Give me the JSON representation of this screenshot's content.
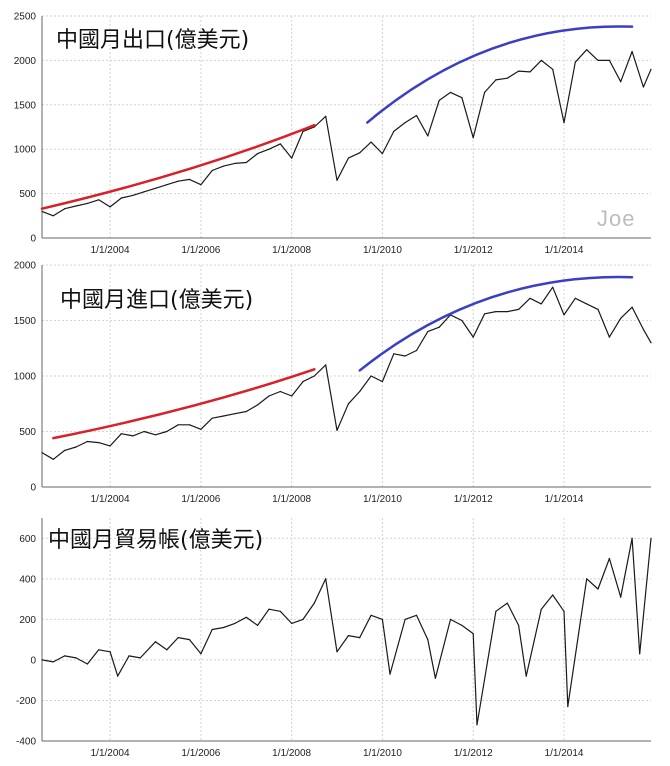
{
  "watermark": "Joe",
  "colors": {
    "line": "#1a1a1a",
    "grid": "#d4d4d4",
    "axis": "#666666",
    "red_trend": "#d9202a",
    "blue_trend": "#3b3fc4"
  },
  "chart_data": [
    {
      "type": "line",
      "title": "中國月出口(億美元)",
      "xlabel": "",
      "ylabel": "",
      "xlim": [
        "2002-07-01",
        "2015-12-01"
      ],
      "ylim": [
        0,
        2500
      ],
      "grid": true,
      "x_ticks": [
        "1/1/2004",
        "1/1/2006",
        "1/1/2008",
        "1/1/2010",
        "1/1/2012",
        "1/1/2014"
      ],
      "y_ticks": [
        "0",
        "500",
        "1000",
        "1500",
        "2000",
        "2500"
      ],
      "x": [
        "2002-07",
        "2002-10",
        "2003-01",
        "2003-04",
        "2003-07",
        "2003-10",
        "2004-01",
        "2004-04",
        "2004-07",
        "2004-10",
        "2005-01",
        "2005-04",
        "2005-07",
        "2005-10",
        "2006-01",
        "2006-04",
        "2006-07",
        "2006-10",
        "2007-01",
        "2007-04",
        "2007-07",
        "2007-10",
        "2008-01",
        "2008-04",
        "2008-07",
        "2008-10",
        "2009-01",
        "2009-04",
        "2009-07",
        "2009-10",
        "2010-01",
        "2010-04",
        "2010-07",
        "2010-10",
        "2011-01",
        "2011-04",
        "2011-07",
        "2011-10",
        "2012-01",
        "2012-04",
        "2012-07",
        "2012-10",
        "2013-01",
        "2013-04",
        "2013-07",
        "2013-10",
        "2014-01",
        "2014-04",
        "2014-07",
        "2014-10",
        "2015-01",
        "2015-04",
        "2015-07",
        "2015-10",
        "2015-12"
      ],
      "series": [
        {
          "values": [
            300,
            250,
            330,
            360,
            390,
            430,
            350,
            450,
            480,
            520,
            560,
            600,
            640,
            660,
            600,
            760,
            810,
            840,
            850,
            950,
            1000,
            1060,
            900,
            1200,
            1250,
            1370,
            650,
            900,
            960,
            1080,
            950,
            1200,
            1300,
            1380,
            1150,
            1550,
            1640,
            1580,
            1130,
            1640,
            1780,
            1800,
            1880,
            1870,
            2000,
            1900,
            1300,
            1980,
            2120,
            2000,
            2000,
            1760,
            2100,
            1700,
            1900
          ]
        }
      ],
      "trend_lines": [
        {
          "color": "red",
          "from": [
            "2002-07",
            330
          ],
          "to": [
            "2008-07",
            1270
          ]
        },
        {
          "color": "blue",
          "from": [
            "2009-09",
            1300
          ],
          "to": [
            "2015-07",
            2380
          ]
        }
      ]
    },
    {
      "type": "line",
      "title": "中國月進口(億美元)",
      "xlabel": "",
      "ylabel": "",
      "xlim": [
        "2002-07-01",
        "2015-12-01"
      ],
      "ylim": [
        0,
        2000
      ],
      "grid": true,
      "x_ticks": [
        "1/1/2004",
        "1/1/2006",
        "1/1/2008",
        "1/1/2010",
        "1/1/2012",
        "1/1/2014"
      ],
      "y_ticks": [
        "0",
        "500",
        "1000",
        "1500",
        "2000"
      ],
      "x": [
        "2002-07",
        "2002-10",
        "2003-01",
        "2003-04",
        "2003-07",
        "2003-10",
        "2004-01",
        "2004-04",
        "2004-07",
        "2004-10",
        "2005-01",
        "2005-04",
        "2005-07",
        "2005-10",
        "2006-01",
        "2006-04",
        "2006-07",
        "2006-10",
        "2007-01",
        "2007-04",
        "2007-07",
        "2007-10",
        "2008-01",
        "2008-04",
        "2008-07",
        "2008-10",
        "2009-01",
        "2009-04",
        "2009-07",
        "2009-10",
        "2010-01",
        "2010-04",
        "2010-07",
        "2010-10",
        "2011-01",
        "2011-04",
        "2011-07",
        "2011-10",
        "2012-01",
        "2012-04",
        "2012-07",
        "2012-10",
        "2013-01",
        "2013-04",
        "2013-07",
        "2013-10",
        "2014-01",
        "2014-04",
        "2014-07",
        "2014-10",
        "2015-01",
        "2015-04",
        "2015-07",
        "2015-10",
        "2015-12"
      ],
      "series": [
        {
          "values": [
            310,
            250,
            330,
            360,
            410,
            400,
            370,
            480,
            460,
            500,
            470,
            500,
            560,
            560,
            520,
            620,
            640,
            660,
            680,
            740,
            820,
            860,
            820,
            950,
            1000,
            1100,
            510,
            750,
            860,
            1000,
            950,
            1200,
            1180,
            1230,
            1400,
            1440,
            1550,
            1500,
            1350,
            1560,
            1580,
            1580,
            1600,
            1700,
            1650,
            1800,
            1550,
            1700,
            1650,
            1600,
            1350,
            1520,
            1620,
            1420,
            1300
          ]
        }
      ],
      "trend_lines": [
        {
          "color": "red",
          "from": [
            "2002-10",
            440
          ],
          "to": [
            "2008-07",
            1060
          ]
        },
        {
          "color": "blue",
          "from": [
            "2009-07",
            1050
          ],
          "to": [
            "2015-07",
            1890
          ]
        }
      ]
    },
    {
      "type": "line",
      "title": "中國月貿易帳(億美元)",
      "xlabel": "",
      "ylabel": "",
      "xlim": [
        "2002-07-01",
        "2015-12-01"
      ],
      "ylim": [
        -400,
        700
      ],
      "grid": true,
      "x_ticks": [
        "1/1/2004",
        "1/1/2006",
        "1/1/2008",
        "1/1/2010",
        "1/1/2012",
        "1/1/2014"
      ],
      "y_ticks": [
        "-400",
        "-200",
        "0",
        "200",
        "400",
        "600"
      ],
      "x": [
        "2002-07",
        "2002-10",
        "2003-01",
        "2003-04",
        "2003-07",
        "2003-10",
        "2004-01",
        "2004-03",
        "2004-06",
        "2004-09",
        "2005-01",
        "2005-04",
        "2005-07",
        "2005-10",
        "2006-01",
        "2006-04",
        "2006-07",
        "2006-10",
        "2007-01",
        "2007-04",
        "2007-07",
        "2007-10",
        "2008-01",
        "2008-04",
        "2008-07",
        "2008-10",
        "2009-01",
        "2009-04",
        "2009-07",
        "2009-10",
        "2010-01",
        "2010-03",
        "2010-07",
        "2010-10",
        "2011-01",
        "2011-03",
        "2011-07",
        "2011-10",
        "2012-01",
        "2012-02",
        "2012-07",
        "2012-10",
        "2013-01",
        "2013-03",
        "2013-07",
        "2013-10",
        "2014-01",
        "2014-02",
        "2014-07",
        "2014-10",
        "2015-01",
        "2015-04",
        "2015-07",
        "2015-09",
        "2015-12"
      ],
      "series": [
        {
          "values": [
            0,
            -10,
            20,
            10,
            -20,
            50,
            40,
            -80,
            20,
            10,
            90,
            50,
            110,
            100,
            30,
            150,
            160,
            180,
            210,
            170,
            250,
            240,
            180,
            200,
            280,
            400,
            40,
            120,
            110,
            220,
            200,
            -70,
            200,
            220,
            100,
            -90,
            200,
            170,
            130,
            -320,
            240,
            280,
            170,
            -80,
            250,
            320,
            240,
            -230,
            400,
            350,
            500,
            310,
            600,
            30,
            600
          ]
        }
      ]
    }
  ]
}
